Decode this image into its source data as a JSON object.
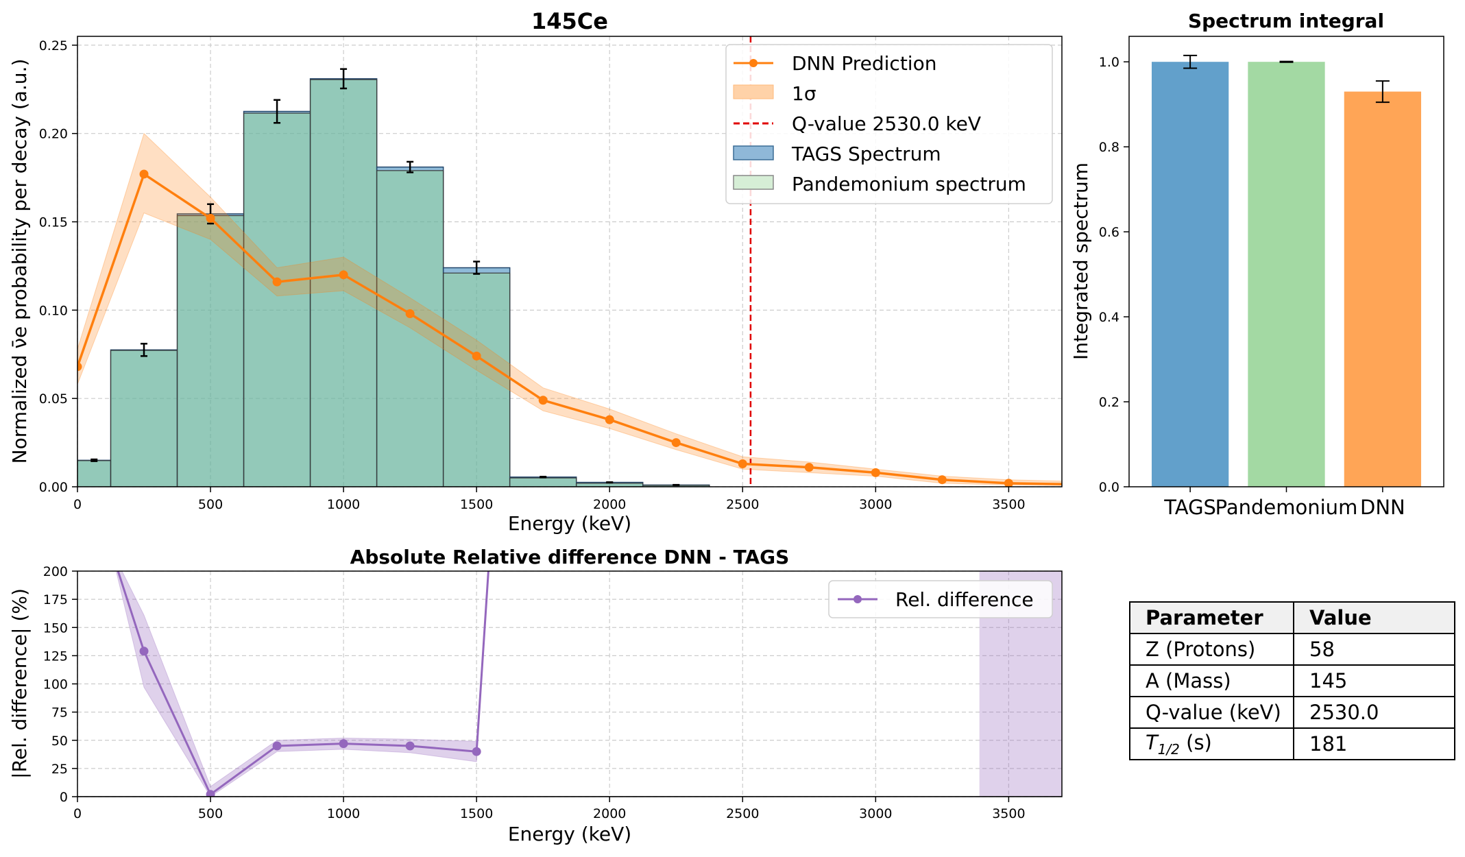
{
  "chart_data": [
    {
      "type": "bar",
      "title": "145Ce",
      "xlabel": "Energy (keV)",
      "ylabel": "Normalized ν̄e probability per decay (a.u.)",
      "xlim": [
        0,
        3700
      ],
      "ylim": [
        0,
        0.255
      ],
      "xticks": [
        0,
        500,
        1000,
        1500,
        2000,
        2500,
        3000,
        3500
      ],
      "yticks": [
        0.0,
        0.05,
        0.1,
        0.15,
        0.2,
        0.25
      ],
      "grid": true,
      "legend_position": "top-right",
      "legend": [
        "DNN Prediction",
        "1σ",
        "Q-value 2530.0 keV",
        "TAGS Spectrum",
        "Pandemonium spectrum"
      ],
      "q_value": 2530.0,
      "bins": [
        {
          "x0": 0,
          "x1": 125,
          "tags": 0.015,
          "tags_err": 0.0005,
          "pandemonium": 0.0148
        },
        {
          "x0": 125,
          "x1": 375,
          "tags": 0.0775,
          "tags_err": 0.0035,
          "pandemonium": 0.0772
        },
        {
          "x0": 375,
          "x1": 625,
          "tags": 0.1545,
          "tags_err": 0.0055,
          "pandemonium": 0.1535
        },
        {
          "x0": 625,
          "x1": 875,
          "tags": 0.2125,
          "tags_err": 0.0065,
          "pandemonium": 0.2115
        },
        {
          "x0": 875,
          "x1": 1125,
          "tags": 0.231,
          "tags_err": 0.0055,
          "pandemonium": 0.2305
        },
        {
          "x0": 1125,
          "x1": 1375,
          "tags": 0.181,
          "tags_err": 0.003,
          "pandemonium": 0.179
        },
        {
          "x0": 1375,
          "x1": 1625,
          "tags": 0.124,
          "tags_err": 0.0035,
          "pandemonium": 0.121
        },
        {
          "x0": 1625,
          "x1": 1875,
          "tags": 0.0055,
          "tags_err": 0.0002,
          "pandemonium": 0.005
        },
        {
          "x0": 1875,
          "x1": 2125,
          "tags": 0.0025,
          "tags_err": 0.0001,
          "pandemonium": 0.002
        },
        {
          "x0": 2125,
          "x1": 2375,
          "tags": 0.001,
          "tags_err": 0.0001,
          "pandemonium": 0.0008
        }
      ],
      "series": [
        {
          "name": "DNN Prediction",
          "x": [
            0,
            250,
            500,
            750,
            1000,
            1250,
            1500,
            1750,
            2000,
            2250,
            2500,
            2750,
            3000,
            3250,
            3500,
            3700
          ],
          "y": [
            0.068,
            0.177,
            0.152,
            0.116,
            0.12,
            0.098,
            0.074,
            0.049,
            0.038,
            0.025,
            0.013,
            0.011,
            0.008,
            0.004,
            0.002,
            0.0015
          ],
          "lower": [
            0.058,
            0.155,
            0.14,
            0.108,
            0.111,
            0.09,
            0.066,
            0.043,
            0.033,
            0.021,
            0.01,
            0.008,
            0.006,
            0.002,
            0.001,
            0.0008
          ],
          "upper": [
            0.078,
            0.2,
            0.164,
            0.124,
            0.13,
            0.107,
            0.083,
            0.056,
            0.044,
            0.03,
            0.017,
            0.014,
            0.01,
            0.006,
            0.004,
            0.0032
          ]
        }
      ]
    },
    {
      "type": "bar",
      "title": "Spectrum integral",
      "ylabel": "Integrated spectrum",
      "ylim": [
        0,
        1.06
      ],
      "yticks": [
        0.0,
        0.2,
        0.4,
        0.6,
        0.8,
        1.0
      ],
      "categories": [
        "TAGS",
        "Pandemonium",
        "DNN"
      ],
      "values": [
        1.0,
        1.0,
        0.93
      ],
      "errors": [
        0.015,
        0.001,
        0.025
      ],
      "colors": [
        "#62a0cb",
        "#a3d9a3",
        "#ffa556"
      ]
    },
    {
      "type": "line",
      "title": "Absolute Relative difference DNN - TAGS",
      "xlabel": "Energy (keV)",
      "ylabel": "|Rel. difference| (%)",
      "xlim": [
        0,
        3700
      ],
      "ylim": [
        0,
        200
      ],
      "xticks": [
        0,
        500,
        1000,
        1500,
        2000,
        2500,
        3000,
        3500
      ],
      "yticks": [
        0,
        25,
        50,
        75,
        100,
        125,
        150,
        175,
        200
      ],
      "grid": true,
      "legend_position": "top-right",
      "legend": [
        "Rel. difference"
      ],
      "series": [
        {
          "name": "Rel. difference",
          "x": [
            125,
            250,
            500,
            750,
            1000,
            1250,
            1500,
            1550
          ],
          "y": [
            220,
            129,
            2,
            45,
            47,
            45,
            40,
            220
          ],
          "lower": [
            220,
            97,
            0,
            40,
            42,
            39,
            31,
            220
          ],
          "upper": [
            220,
            161,
            9,
            50,
            52,
            51,
            49,
            220
          ]
        }
      ],
      "shaded_x_range": [
        3390,
        3700
      ]
    }
  ],
  "table": {
    "headers": [
      "Parameter",
      "Value"
    ],
    "rows": [
      [
        "Z (Protons)",
        "58"
      ],
      [
        "A (Mass)",
        "145"
      ],
      [
        "Q-value (keV)",
        "2530.0"
      ],
      [
        "T1/2 (s)",
        "181"
      ]
    ]
  }
}
